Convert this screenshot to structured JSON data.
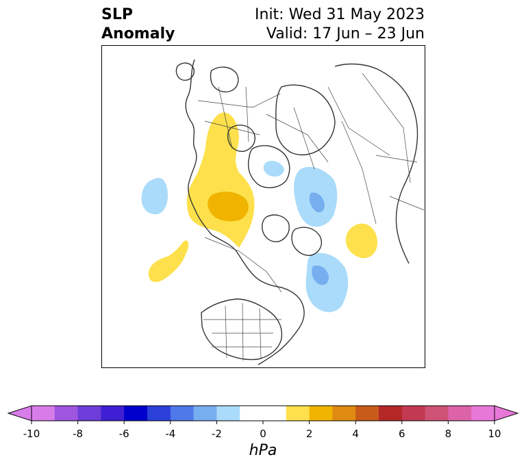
{
  "header": {
    "title_line1": "SLP",
    "title_line2": "Anomaly",
    "init_text": "Init: Wed 31 May 2023",
    "valid_text": "Valid: 17 Jun – 23 Jun"
  },
  "colorbar": {
    "unit": "hPa",
    "tick_labels": [
      "-10",
      "-8",
      "-6",
      "-4",
      "-2",
      "0",
      "2",
      "4",
      "6",
      "8",
      "10"
    ],
    "bins": [
      {
        "color": "#d77ce9"
      },
      {
        "color": "#9e55e0"
      },
      {
        "color": "#6e3cd8"
      },
      {
        "color": "#3f1fd3"
      },
      {
        "color": "#0000cc"
      },
      {
        "color": "#2b3fd9"
      },
      {
        "color": "#4f78e8"
      },
      {
        "color": "#77aef0"
      },
      {
        "color": "#aadbfa"
      },
      {
        "color": "#ffffff"
      },
      {
        "color": "#ffffff"
      },
      {
        "color": "#fde04b"
      },
      {
        "color": "#f0b400"
      },
      {
        "color": "#e08a12"
      },
      {
        "color": "#c85a1a"
      },
      {
        "color": "#b32727"
      },
      {
        "color": "#c23a52"
      },
      {
        "color": "#ce5275"
      },
      {
        "color": "#dc63a8"
      },
      {
        "color": "#e878d8"
      }
    ],
    "extend_low_color": "#d77ce9",
    "extend_high_color": "#e878d8"
  },
  "map": {
    "colors": {
      "pos_light": "#fde04b",
      "pos_mid": "#f0b400",
      "neg_light": "#aadbfa",
      "neg_mid": "#77aef0",
      "coast": "#333333",
      "border": "#444444"
    }
  }
}
